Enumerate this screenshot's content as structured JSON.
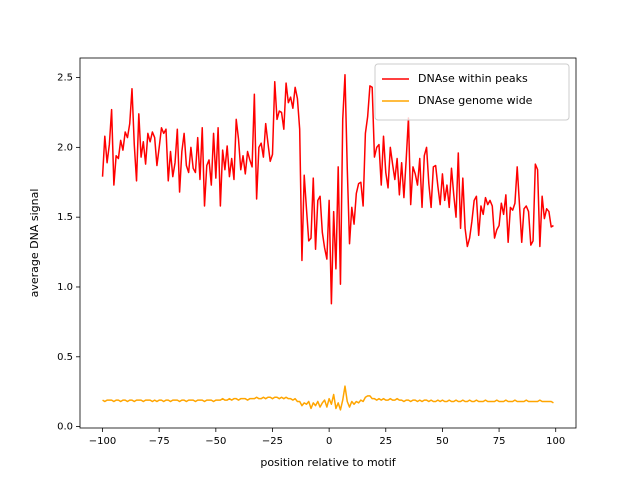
{
  "chart_data": {
    "type": "line",
    "xlabel": "position relative to motif",
    "ylabel": "average DNA signal",
    "x": [
      -100,
      -99,
      -98,
      -97,
      -96,
      -95,
      -94,
      -93,
      -92,
      -91,
      -90,
      -89,
      -88,
      -87,
      -86,
      -85,
      -84,
      -83,
      -82,
      -81,
      -80,
      -79,
      -78,
      -77,
      -76,
      -75,
      -74,
      -73,
      -72,
      -71,
      -70,
      -69,
      -68,
      -67,
      -66,
      -65,
      -64,
      -63,
      -62,
      -61,
      -60,
      -59,
      -58,
      -57,
      -56,
      -55,
      -54,
      -53,
      -52,
      -51,
      -50,
      -49,
      -48,
      -47,
      -46,
      -45,
      -44,
      -43,
      -42,
      -41,
      -40,
      -39,
      -38,
      -37,
      -36,
      -35,
      -34,
      -33,
      -32,
      -31,
      -30,
      -29,
      -28,
      -27,
      -26,
      -25,
      -24,
      -23,
      -22,
      -21,
      -20,
      -19,
      -18,
      -17,
      -16,
      -15,
      -14,
      -13,
      -12,
      -11,
      -10,
      -9,
      -8,
      -7,
      -6,
      -5,
      -4,
      -3,
      -2,
      -1,
      0,
      1,
      2,
      3,
      4,
      5,
      6,
      7,
      8,
      9,
      10,
      11,
      12,
      13,
      14,
      15,
      16,
      17,
      18,
      19,
      20,
      21,
      22,
      23,
      24,
      25,
      26,
      27,
      28,
      29,
      30,
      31,
      32,
      33,
      34,
      35,
      36,
      37,
      38,
      39,
      40,
      41,
      42,
      43,
      44,
      45,
      46,
      47,
      48,
      49,
      50,
      51,
      52,
      53,
      54,
      55,
      56,
      57,
      58,
      59,
      60,
      61,
      62,
      63,
      64,
      65,
      66,
      67,
      68,
      69,
      70,
      71,
      72,
      73,
      74,
      75,
      76,
      77,
      78,
      79,
      80,
      81,
      82,
      83,
      84,
      85,
      86,
      87,
      88,
      89,
      90,
      91,
      92,
      93,
      94,
      95,
      96,
      97,
      98,
      99
    ],
    "series": [
      {
        "name": "DNAse within peaks",
        "color": "#ff0000",
        "values": [
          1.79,
          2.08,
          1.89,
          2.02,
          2.27,
          1.73,
          1.94,
          1.92,
          2.05,
          1.98,
          2.11,
          2.07,
          2.17,
          2.42,
          2.02,
          1.76,
          2.24,
          1.93,
          2.04,
          1.88,
          2.1,
          2.04,
          2.11,
          2.07,
          1.87,
          2.0,
          2.14,
          2.1,
          2.13,
          1.76,
          1.97,
          1.79,
          1.89,
          2.13,
          1.68,
          1.97,
          2.1,
          1.87,
          1.82,
          2.0,
          1.85,
          1.82,
          2.07,
          1.77,
          2.14,
          1.58,
          1.87,
          1.91,
          1.73,
          2.1,
          1.78,
          2.14,
          1.58,
          1.98,
          1.84,
          2.01,
          1.79,
          1.92,
          1.77,
          2.2,
          2.06,
          1.84,
          1.94,
          1.81,
          1.97,
          1.91,
          1.86,
          2.38,
          1.63,
          2.0,
          2.03,
          1.93,
          2.17,
          2.03,
          1.9,
          1.95,
          2.47,
          2.2,
          2.26,
          2.25,
          2.13,
          2.46,
          2.32,
          2.36,
          2.28,
          2.43,
          2.35,
          2.13,
          1.19,
          1.8,
          1.56,
          1.33,
          1.35,
          1.78,
          1.27,
          1.62,
          1.65,
          1.39,
          1.28,
          1.2,
          1.62,
          0.88,
          1.54,
          1.13,
          1.86,
          1.02,
          2.2,
          2.52,
          1.85,
          1.31,
          1.57,
          1.45,
          1.67,
          1.74,
          1.75,
          1.58,
          2.1,
          2.22,
          2.44,
          2.43,
          1.93,
          2.0,
          2.02,
          1.73,
          2.08,
          1.82,
          1.71,
          2.0,
          1.88,
          1.77,
          1.92,
          1.66,
          1.89,
          1.64,
          1.91,
          2.21,
          1.59,
          1.86,
          1.81,
          1.73,
          1.92,
          1.57,
          1.94,
          2.0,
          1.74,
          1.57,
          1.86,
          1.87,
          1.72,
          1.59,
          1.81,
          1.62,
          1.73,
          1.57,
          1.85,
          1.66,
          1.5,
          1.96,
          1.42,
          1.78,
          1.42,
          1.29,
          1.35,
          1.47,
          1.62,
          1.65,
          1.37,
          1.58,
          1.52,
          1.64,
          1.59,
          1.62,
          1.58,
          1.35,
          1.41,
          1.44,
          1.6,
          1.52,
          1.66,
          1.32,
          1.57,
          1.55,
          1.6,
          1.86,
          1.59,
          1.32,
          1.56,
          1.58,
          1.54,
          1.3,
          1.33,
          1.88,
          1.84,
          1.29,
          1.65,
          1.49,
          1.56,
          1.54,
          1.43,
          1.44
        ]
      },
      {
        "name": "DNAse genome wide",
        "color": "#ffa500",
        "values": [
          0.19,
          0.18,
          0.19,
          0.19,
          0.19,
          0.18,
          0.19,
          0.19,
          0.18,
          0.19,
          0.19,
          0.18,
          0.19,
          0.19,
          0.18,
          0.19,
          0.19,
          0.19,
          0.18,
          0.19,
          0.19,
          0.19,
          0.18,
          0.19,
          0.18,
          0.19,
          0.19,
          0.18,
          0.19,
          0.19,
          0.18,
          0.19,
          0.19,
          0.19,
          0.18,
          0.19,
          0.19,
          0.18,
          0.19,
          0.19,
          0.19,
          0.18,
          0.19,
          0.19,
          0.19,
          0.18,
          0.19,
          0.19,
          0.19,
          0.18,
          0.19,
          0.19,
          0.19,
          0.2,
          0.19,
          0.19,
          0.2,
          0.19,
          0.2,
          0.2,
          0.19,
          0.2,
          0.2,
          0.2,
          0.19,
          0.2,
          0.2,
          0.2,
          0.21,
          0.2,
          0.2,
          0.21,
          0.2,
          0.21,
          0.21,
          0.2,
          0.21,
          0.21,
          0.2,
          0.21,
          0.2,
          0.21,
          0.2,
          0.2,
          0.19,
          0.2,
          0.18,
          0.18,
          0.15,
          0.17,
          0.16,
          0.18,
          0.13,
          0.17,
          0.15,
          0.18,
          0.14,
          0.17,
          0.19,
          0.14,
          0.2,
          0.16,
          0.23,
          0.13,
          0.17,
          0.12,
          0.19,
          0.29,
          0.18,
          0.14,
          0.18,
          0.16,
          0.18,
          0.17,
          0.19,
          0.18,
          0.21,
          0.22,
          0.22,
          0.2,
          0.2,
          0.19,
          0.2,
          0.19,
          0.2,
          0.19,
          0.19,
          0.2,
          0.19,
          0.19,
          0.2,
          0.19,
          0.19,
          0.18,
          0.19,
          0.19,
          0.18,
          0.19,
          0.19,
          0.18,
          0.19,
          0.18,
          0.19,
          0.19,
          0.18,
          0.19,
          0.18,
          0.18,
          0.19,
          0.18,
          0.19,
          0.18,
          0.18,
          0.19,
          0.18,
          0.18,
          0.19,
          0.18,
          0.18,
          0.19,
          0.18,
          0.18,
          0.19,
          0.18,
          0.18,
          0.19,
          0.18,
          0.18,
          0.18,
          0.19,
          0.18,
          0.18,
          0.18,
          0.18,
          0.19,
          0.18,
          0.18,
          0.18,
          0.19,
          0.18,
          0.18,
          0.18,
          0.19,
          0.18,
          0.18,
          0.18,
          0.18,
          0.19,
          0.18,
          0.18,
          0.18,
          0.18,
          0.18,
          0.19,
          0.18,
          0.18,
          0.18,
          0.18,
          0.18,
          0.17
        ]
      }
    ],
    "xlim": [
      -109.95,
      108.95
    ],
    "xticks": [
      {
        "value": -100,
        "label": "−100"
      },
      {
        "value": -75,
        "label": "−75"
      },
      {
        "value": -50,
        "label": "−50"
      },
      {
        "value": -25,
        "label": "−25"
      },
      0,
      25,
      50,
      75,
      100
    ],
    "ylim": [
      -0.01,
      2.64
    ],
    "yticks": [
      {
        "value": 0,
        "label": "0.0"
      },
      0.5,
      {
        "value": 1,
        "label": "1.0"
      },
      1.5,
      {
        "value": 2,
        "label": "2.0"
      },
      2.5
    ],
    "grid": false,
    "legend": "upper right"
  }
}
